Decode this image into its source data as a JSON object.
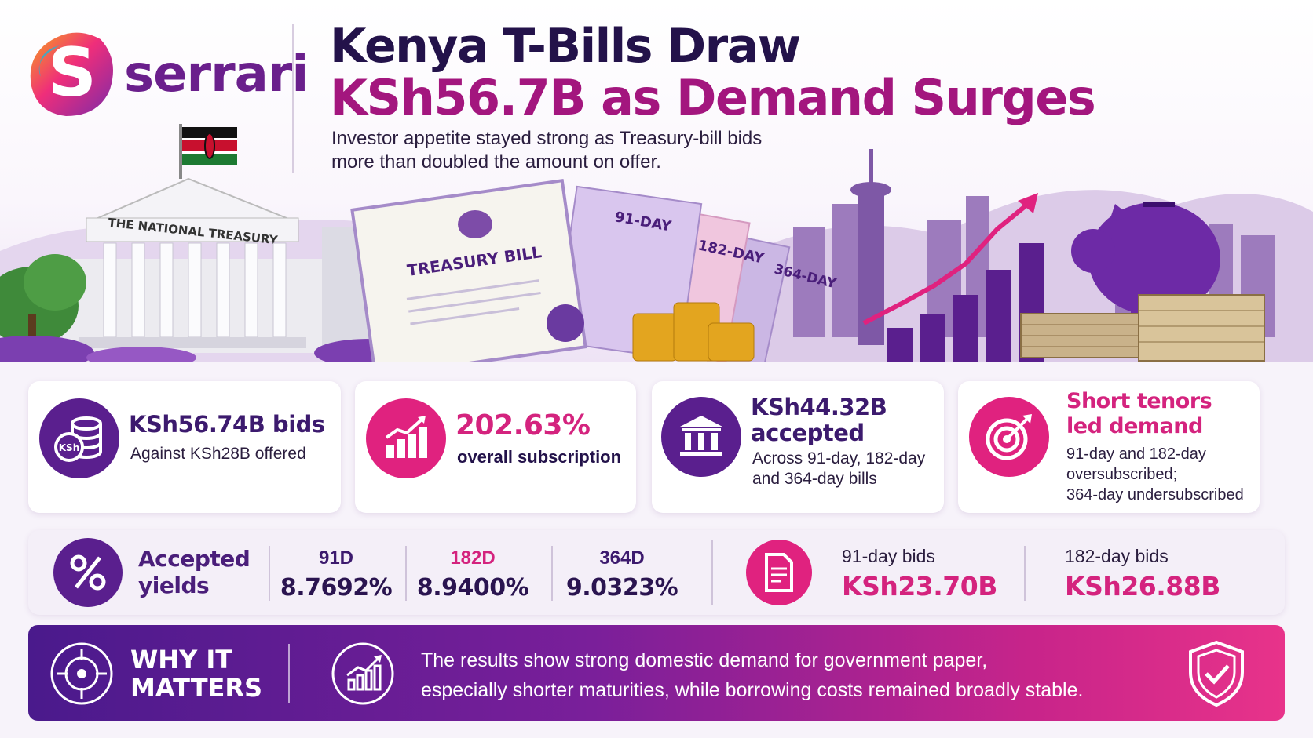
{
  "brand": {
    "name": "serrari",
    "colors": {
      "purple": "#5a1f8e",
      "pink": "#e0227f",
      "deep": "#23124a",
      "magenta": "#a3167e"
    }
  },
  "header": {
    "title_line1": "Kenya T-Bills Draw",
    "title_line2": "KSh56.7B as Demand Surges",
    "subtitle_line1": "Investor appetite stayed strong as Treasury-bill bids",
    "subtitle_line2": "more than doubled the amount on offer."
  },
  "illustration": {
    "building_sign": "THE NATIONAL TREASURY",
    "bill_title": "TREASURY BILL",
    "tenor_tabs": [
      "91-DAY",
      "182-DAY",
      "364-DAY"
    ],
    "currency_badge": "KSh"
  },
  "stats": [
    {
      "icon": "coin-stack-icon",
      "title": "KSh56.74B bids",
      "text": "Against KSh28B offered"
    },
    {
      "icon": "bar-chart-growth-icon",
      "title": "202.63%",
      "text": "overall subscription"
    },
    {
      "icon": "bank-building-icon",
      "title_line1": "KSh44.32B",
      "title_line2": "accepted",
      "text_line1": "Across 91-day, 182-day",
      "text_line2": "and 364-day bills"
    },
    {
      "icon": "target-icon",
      "title_line1": "Short tenors",
      "title_line2": "led demand",
      "text_line1": "91-day and 182-day",
      "text_line2": "oversubscribed;",
      "text_line3": "364-day undersubscribed"
    }
  ],
  "yields": {
    "icon": "percent-icon",
    "label_line1": "Accepted",
    "label_line2": "yields",
    "items": [
      {
        "tenor": "91D",
        "value": "8.7692%",
        "color": "#3c1a6e"
      },
      {
        "tenor": "182D",
        "value": "8.9400%",
        "color": "#d4237e"
      },
      {
        "tenor": "364D",
        "value": "9.0323%",
        "color": "#3c1a6e"
      }
    ]
  },
  "bids": {
    "icon": "document-icon",
    "items": [
      {
        "label": "91-day bids",
        "value": "KSh23.70B"
      },
      {
        "label": "182-day bids",
        "value": "KSh26.88B"
      }
    ]
  },
  "why": {
    "title_line1": "WHY IT",
    "title_line2": "MATTERS",
    "text_line1": "The results show strong domestic demand for government paper,",
    "text_line2": "especially shorter maturities, while borrowing costs remained broadly stable."
  }
}
